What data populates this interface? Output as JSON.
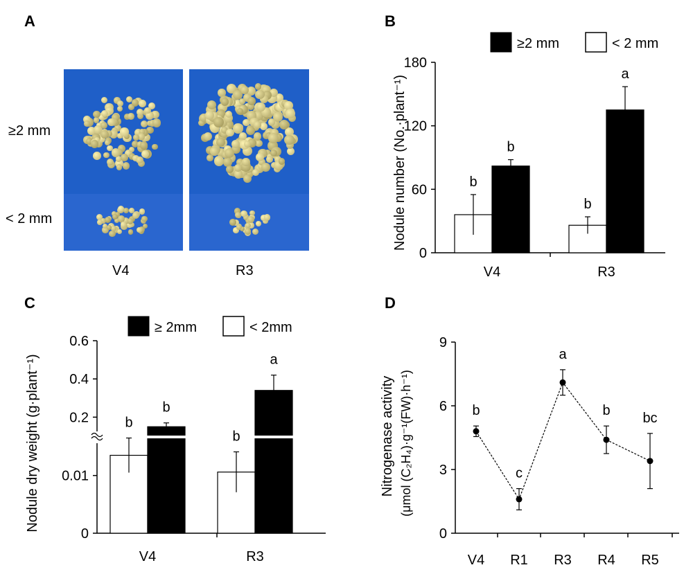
{
  "panels": {
    "A": {
      "letter": "A",
      "row_labels": [
        "≥2 mm",
        "< 2 mm"
      ],
      "col_labels": [
        "V4",
        "R3"
      ]
    },
    "B": {
      "letter": "B"
    },
    "C": {
      "letter": "C"
    },
    "D": {
      "letter": "D"
    }
  },
  "colors": {
    "bar_large": "#000000",
    "bar_small": "#ffffff",
    "photo_bg": "#1f5fc8",
    "nodule": "#d8c58a"
  },
  "chart_data": [
    {
      "panel": "B",
      "type": "bar",
      "categories": [
        "V4",
        "R3"
      ],
      "series": [
        {
          "name": "< 2 mm",
          "values": [
            36,
            26
          ],
          "errors": [
            19,
            8
          ],
          "letters": [
            "b",
            "b"
          ]
        },
        {
          "name": "≥2 mm",
          "values": [
            82,
            135
          ],
          "errors": [
            6,
            22
          ],
          "letters": [
            "b",
            "a"
          ]
        }
      ],
      "legend": [
        "≥2 mm",
        "< 2 mm"
      ],
      "ylabel": "Nodule number (No.·plant⁻¹)",
      "yticks": [
        "0",
        "60",
        "120",
        "180"
      ],
      "ylim": [
        0,
        180
      ],
      "legend_position": "top"
    },
    {
      "panel": "C",
      "type": "bar",
      "categories": [
        "V4",
        "R3"
      ],
      "axis_break": true,
      "series": [
        {
          "name": "< 2mm",
          "values": [
            0.0135,
            0.0106
          ],
          "errors": [
            0.003,
            0.0035
          ],
          "letters": [
            "b",
            "b"
          ]
        },
        {
          "name": "≥ 2mm",
          "values": [
            0.15,
            0.34
          ],
          "errors": [
            0.02,
            0.08
          ],
          "letters": [
            "b",
            "a"
          ]
        }
      ],
      "legend": [
        "≥ 2mm",
        "< 2mm"
      ],
      "ylabel": "Nodule dry weight (g·plant⁻¹)",
      "yticks_lower": [
        "0",
        "0.01"
      ],
      "yticks_upper": [
        "0.2",
        "0.4",
        "0.6"
      ],
      "legend_position": "top"
    },
    {
      "panel": "D",
      "type": "line",
      "x": [
        "V4",
        "R1",
        "R3",
        "R4",
        "R5"
      ],
      "values": [
        4.8,
        1.6,
        7.1,
        4.4,
        3.4
      ],
      "errors": [
        0.25,
        0.5,
        0.6,
        0.65,
        1.3
      ],
      "letters": [
        "b",
        "c",
        "a",
        "b",
        "bc"
      ],
      "ylabel_line1": "Nitrogenase activity",
      "ylabel_line2": "(μmol (C₂H₄)·g⁻¹(FW)·h⁻¹)",
      "yticks": [
        "0",
        "3",
        "6",
        "9"
      ],
      "ylim": [
        0,
        9
      ]
    }
  ]
}
